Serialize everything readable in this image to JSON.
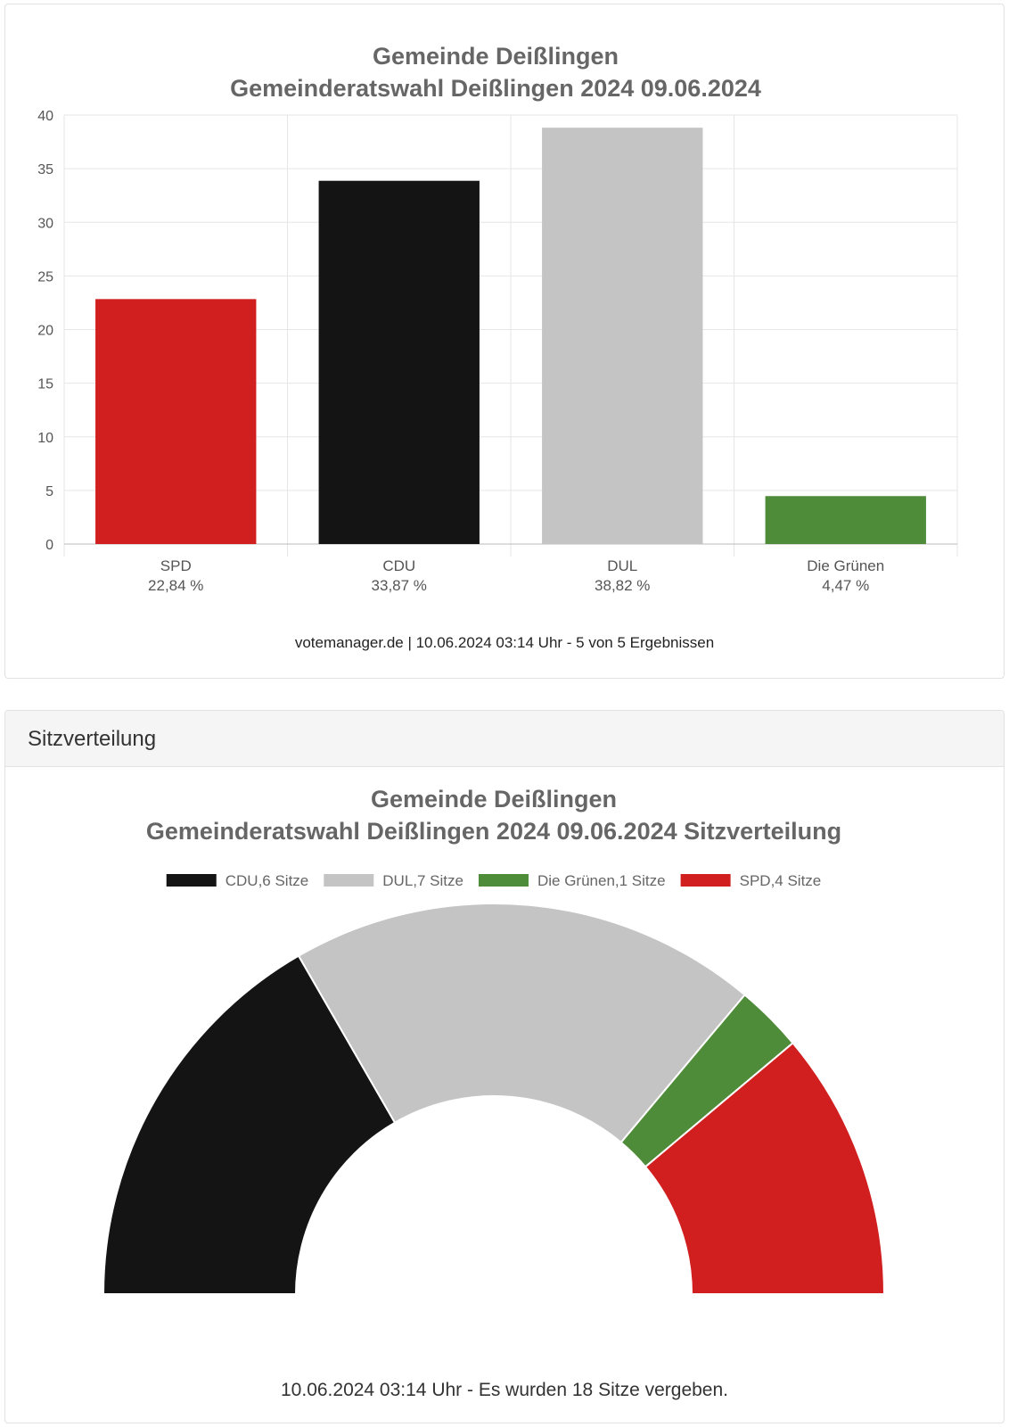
{
  "chart_data": [
    {
      "type": "bar",
      "title": "Gemeinde Deißlingen",
      "subtitle": "Gemeinderatswahl Deißlingen 2024 09.06.2024",
      "categories": [
        "SPD",
        "CDU",
        "DUL",
        "Die Grünen"
      ],
      "category_value_labels": [
        "22,84 %",
        "33,87 %",
        "38,82 %",
        "4,47 %"
      ],
      "values": [
        22.84,
        33.87,
        38.82,
        4.47
      ],
      "colors": [
        "#d11e1e",
        "#141414",
        "#c4c4c4",
        "#4f8c3a"
      ],
      "ylim": [
        0,
        40
      ],
      "yticks": [
        0,
        5,
        10,
        15,
        20,
        25,
        30,
        35,
        40
      ],
      "grid": true,
      "footer": "votemanager.de | 10.06.2024 03:14 Uhr - 5 von 5 Ergebnissen"
    },
    {
      "type": "pie",
      "variant": "half-donut",
      "header": "Sitzverteilung",
      "title": "Gemeinde Deißlingen",
      "subtitle": "Gemeinderatswahl Deißlingen 2024 09.06.2024 Sitzverteilung",
      "legend_position": "top",
      "slices": [
        {
          "label": "CDU,6 Sitze",
          "value": 6,
          "color": "#141414"
        },
        {
          "label": "DUL,7 Sitze",
          "value": 7,
          "color": "#c4c4c4"
        },
        {
          "label": "Die Grünen,1 Sitze",
          "value": 1,
          "color": "#4f8c3a"
        },
        {
          "label": "SPD,4 Sitze",
          "value": 4,
          "color": "#d11e1e"
        }
      ],
      "total": 18,
      "footer": "10.06.2024 03:14 Uhr - Es wurden 18 Sitze vergeben."
    }
  ]
}
